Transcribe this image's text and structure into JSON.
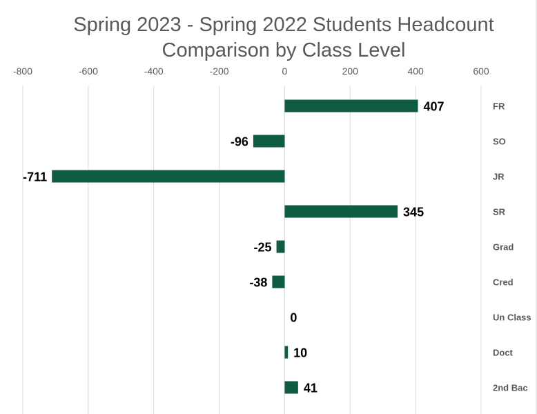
{
  "chart_data": {
    "type": "bar",
    "orientation": "horizontal",
    "title_lines": [
      "Spring 2023 - Spring 2022 Students Headcount",
      "Comparison by Class Level"
    ],
    "categories": [
      "FR",
      "SO",
      "JR",
      "SR",
      "Grad",
      "Cred",
      "Un Class",
      "Doct",
      "2nd Bac"
    ],
    "values": [
      407,
      -96,
      -711,
      345,
      -25,
      -38,
      0,
      10,
      41
    ],
    "data_labels": [
      "407",
      "-96",
      "-711",
      "345",
      "-25",
      "-38",
      "0",
      "10",
      "41"
    ],
    "xlim": [
      -800,
      600
    ],
    "x_ticks": [
      "-800",
      "-600",
      "-400",
      "-200",
      "0",
      "200",
      "400",
      "600"
    ],
    "x_tick_values": [
      -800,
      -600,
      -400,
      -200,
      0,
      200,
      400,
      600
    ],
    "x_axis_position": "top",
    "category_labels_position": "right",
    "grid": true,
    "legend": "none",
    "bar_color": "#0e5c41"
  }
}
